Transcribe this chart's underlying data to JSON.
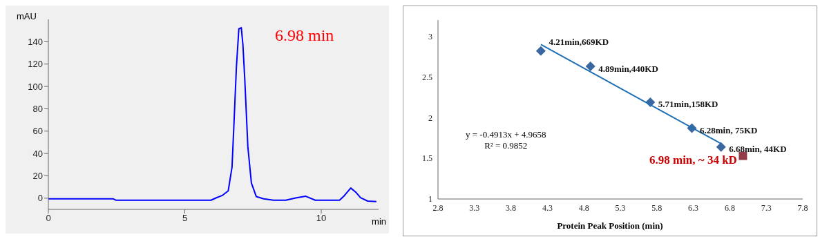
{
  "chart_data": [
    {
      "type": "line",
      "xlabel": "min",
      "ylabel": "mAU",
      "annotations": [
        "6.98 min"
      ],
      "xlim": [
        0,
        12.1
      ],
      "ylim": [
        -10,
        160
      ],
      "xticks": [
        0,
        5,
        10
      ],
      "yticks": [
        0,
        20,
        40,
        60,
        80,
        100,
        120,
        140
      ],
      "grid": false,
      "marker": "none",
      "series": [
        {
          "color": "#0000ff",
          "x": [
            0,
            2.38,
            2.47,
            5.96,
            6.14,
            6.37,
            6.59,
            6.73,
            6.8,
            6.89,
            6.98,
            7.07,
            7.13,
            7.2,
            7.31,
            7.44,
            7.62,
            7.89,
            8.25,
            8.7,
            9.06,
            9.42,
            9.78,
            10.67,
            10.85,
            11.08,
            11.26,
            11.44,
            11.7,
            12.02
          ],
          "values": [
            -0.6,
            -0.6,
            -1.8,
            -1.8,
            0.2,
            2.4,
            6.5,
            27.8,
            66,
            117,
            151.5,
            152.5,
            137,
            105,
            46,
            13.6,
            1.4,
            -0.6,
            -1.8,
            -1.8,
            0.2,
            1.8,
            -1.8,
            -1.8,
            2.4,
            9.1,
            5.5,
            0.4,
            -2.6,
            -3
          ]
        }
      ]
    },
    {
      "type": "scatter",
      "xlabel": "Protein Peak Position (min)",
      "annotations": [
        "y = -0.4913x + 4.9658",
        "R² = 0.9852"
      ],
      "xlim": [
        2.8,
        7.8
      ],
      "ylim": [
        1,
        3.2
      ],
      "xticks": [
        2.8,
        3.3,
        3.8,
        4.3,
        4.8,
        5.3,
        5.8,
        6.3,
        6.8,
        7.3,
        7.8
      ],
      "yticks": [
        1,
        1.5,
        2,
        2.5,
        3
      ],
      "grid": false,
      "series": [
        {
          "type": "scatter",
          "marker": "diamond",
          "color": "#3a67a0",
          "x": [
            4.21,
            4.89,
            5.71,
            6.28,
            6.68
          ],
          "values": [
            2.82,
            2.63,
            2.19,
            1.87,
            1.64
          ],
          "value_labels": [
            "4.21min,669KD",
            "4.89min,440KD",
            "5.71min,158KD",
            "6.28min, 75KD",
            "6.68min, 44KD"
          ]
        },
        {
          "type": "scatter",
          "marker": "square",
          "color": "#943c4a",
          "x": [
            6.98
          ],
          "values": [
            1.53
          ],
          "value_labels": [
            "6.98 min, ~ 34 kD"
          ]
        },
        {
          "type": "line",
          "color": "#1f6fb5",
          "x": [
            4.21,
            6.68
          ],
          "values": [
            2.9,
            1.68
          ]
        }
      ]
    }
  ]
}
